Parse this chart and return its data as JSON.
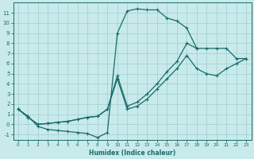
{
  "xlabel": "Humidex (Indice chaleur)",
  "bg_color": "#c8eaea",
  "grid_color": "#9ecece",
  "line_color": "#1a6b6b",
  "xlim": [
    -0.5,
    23.5
  ],
  "ylim": [
    -1.5,
    12.0
  ],
  "xticks": [
    0,
    1,
    2,
    3,
    4,
    5,
    6,
    7,
    8,
    9,
    10,
    11,
    12,
    13,
    14,
    15,
    16,
    17,
    18,
    19,
    20,
    21,
    22,
    23
  ],
  "yticks": [
    -1,
    0,
    1,
    2,
    3,
    4,
    5,
    6,
    7,
    8,
    9,
    10,
    11
  ],
  "line1_x": [
    0,
    1,
    2,
    3,
    4,
    5,
    6,
    7,
    8,
    9,
    10,
    11,
    12,
    13,
    14,
    15,
    16,
    17,
    18,
    19,
    20,
    21,
    22,
    23
  ],
  "line1_y": [
    1.5,
    0.8,
    -0.2,
    -0.5,
    -0.6,
    -0.7,
    -0.8,
    -0.9,
    -1.3,
    -0.8,
    9.0,
    11.2,
    11.4,
    11.3,
    11.3,
    10.5,
    10.2,
    9.5,
    7.5,
    null,
    null,
    null,
    null,
    null
  ],
  "line2_x": [
    0,
    1,
    2,
    3,
    4,
    5,
    6,
    7,
    8,
    9,
    10,
    11,
    12,
    13,
    14,
    15,
    16,
    17,
    18,
    19,
    20,
    21,
    22,
    23
  ],
  "line2_y": [
    1.5,
    0.7,
    0.0,
    0.1,
    0.2,
    0.3,
    0.5,
    0.7,
    0.8,
    1.5,
    4.8,
    1.8,
    2.2,
    3.0,
    4.0,
    5.2,
    6.2,
    8.0,
    7.5,
    7.5,
    7.5,
    7.5,
    6.5,
    6.5
  ],
  "line3_x": [
    0,
    1,
    2,
    3,
    4,
    5,
    6,
    7,
    8,
    9,
    10,
    11,
    12,
    13,
    14,
    15,
    16,
    17,
    18,
    19,
    20,
    21,
    22,
    23
  ],
  "line3_y": [
    1.5,
    0.7,
    0.0,
    0.1,
    0.2,
    0.3,
    0.5,
    0.7,
    0.8,
    1.5,
    4.5,
    1.5,
    1.8,
    2.5,
    3.5,
    4.5,
    5.5,
    6.8,
    5.5,
    5.0,
    4.8,
    5.5,
    6.0,
    6.5
  ]
}
